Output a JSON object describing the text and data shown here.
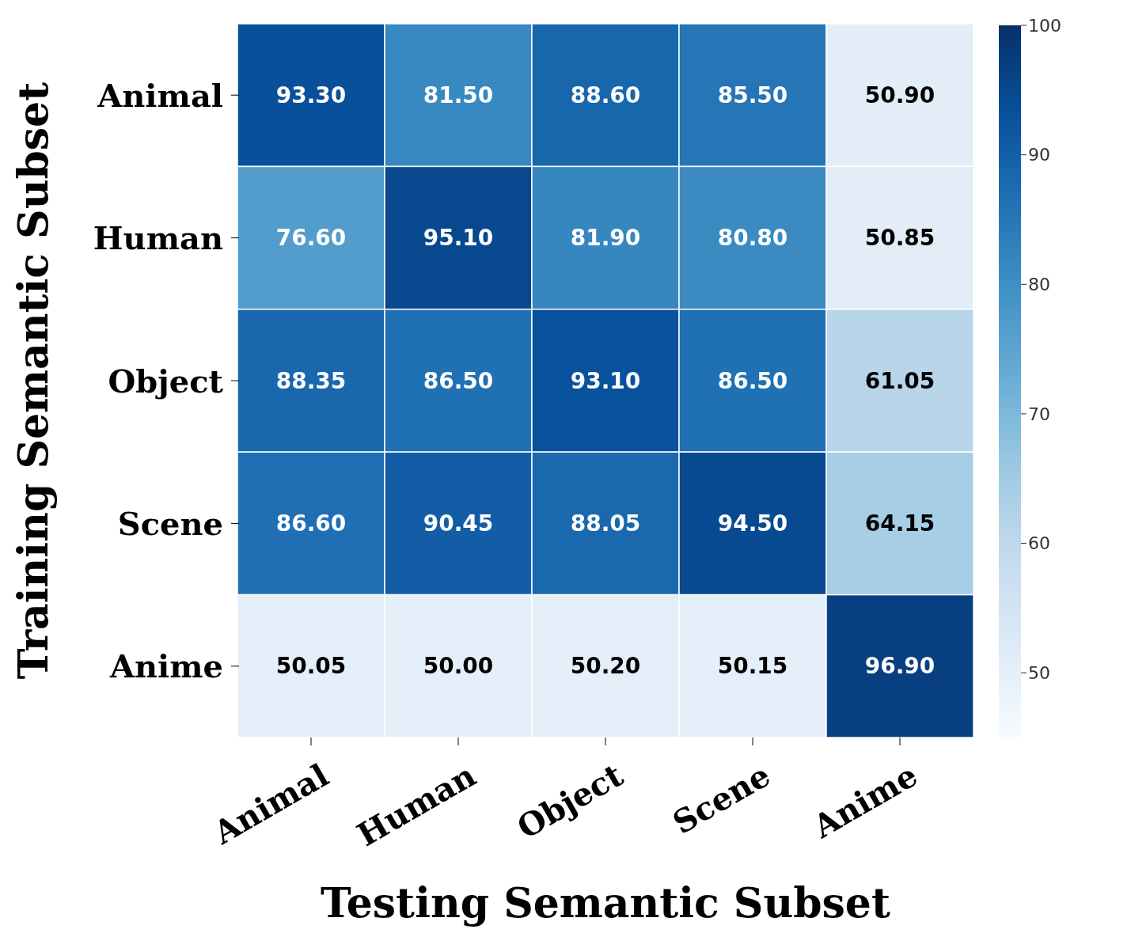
{
  "chart_data": {
    "type": "heatmap",
    "xlabel": "Testing Semantic Subset",
    "ylabel": "Training Semantic Subset",
    "categories": [
      "Animal",
      "Human",
      "Object",
      "Scene",
      "Anime"
    ],
    "y_categories": [
      "Animal",
      "Human",
      "Object",
      "Scene",
      "Anime"
    ],
    "cells": [
      [
        93.3,
        81.5,
        88.6,
        85.5,
        50.9
      ],
      [
        76.6,
        95.1,
        81.9,
        80.8,
        50.85
      ],
      [
        88.35,
        86.5,
        93.1,
        86.5,
        61.05
      ],
      [
        86.6,
        90.45,
        88.05,
        94.5,
        64.15
      ],
      [
        50.05,
        50.0,
        50.2,
        50.15,
        96.9
      ]
    ],
    "cell_labels": [
      [
        "93.30",
        "81.50",
        "88.60",
        "85.50",
        "50.90"
      ],
      [
        "76.60",
        "95.10",
        "81.90",
        "80.80",
        "50.85"
      ],
      [
        "88.35",
        "86.50",
        "93.10",
        "86.50",
        "61.05"
      ],
      [
        "86.60",
        "90.45",
        "88.05",
        "94.50",
        "64.15"
      ],
      [
        "50.05",
        "50.00",
        "50.20",
        "50.15",
        "96.90"
      ]
    ],
    "clim": [
      45,
      100
    ],
    "cticks": [
      50,
      60,
      70,
      80,
      90,
      100
    ]
  }
}
